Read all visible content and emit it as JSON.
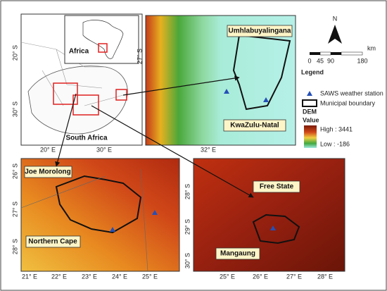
{
  "overview": {
    "inset_label": "Africa",
    "country_label": "South Africa",
    "lat_ticks": [
      "20° S",
      "30° S"
    ],
    "lon_ticks": [
      "20° E",
      "30° E"
    ]
  },
  "kzn_map": {
    "place_label": "Umhlabuyalingana",
    "province_label": "KwaZulu-Natal",
    "lat_ticks": [
      "27° S"
    ],
    "lon_ticks": [
      "32° E"
    ]
  },
  "north_arrow": "N",
  "scale_bar": {
    "ticks": [
      "0",
      "45",
      "90",
      "180"
    ],
    "unit": "km"
  },
  "legend": {
    "title": "Legend",
    "items": [
      "SAWS weather station",
      "Municipal boundary"
    ],
    "dem_title": "DEM",
    "value_title": "Value",
    "high": "High : 3441",
    "low": "Low : -186"
  },
  "nc_map": {
    "place_label": "Joe Morolong",
    "province_label": "Northern Cape",
    "lat_ticks": [
      "26° S",
      "27° S",
      "28° S"
    ],
    "lon_ticks": [
      "21° E",
      "22° E",
      "23° E",
      "24° E",
      "25° E"
    ]
  },
  "fs_map": {
    "province_label": "Free State",
    "place_label": "Mangaung",
    "lat_ticks": [
      "28° S",
      "29° S",
      "30° S"
    ],
    "lon_ticks": [
      "25° E",
      "26° E",
      "27° E",
      "28° E"
    ]
  }
}
